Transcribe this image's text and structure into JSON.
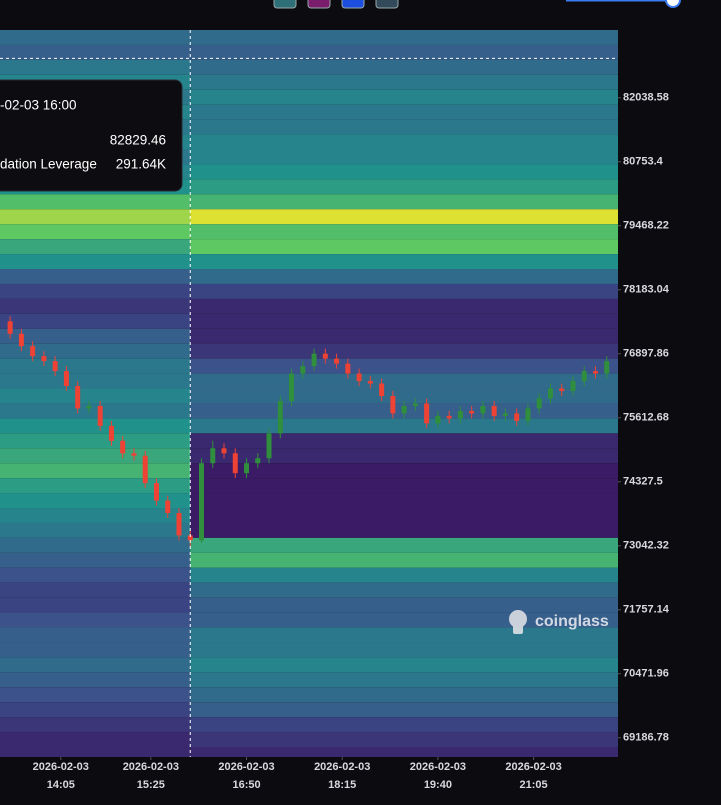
{
  "chart_data": {
    "type": "heatmap-candlestick",
    "ylim": [
      68800,
      83400
    ],
    "yticks": [
      82038.58,
      80753.4,
      79468.22,
      78183.04,
      76897.86,
      75612.68,
      74327.5,
      73042.32,
      71757.14,
      70471.96,
      69186.78
    ],
    "xlim": [
      "2026-02-03 13:11",
      "2026-02-03 22:20"
    ],
    "xticks": [
      {
        "value": "2026-02-03 14:05",
        "date": "2026-02-03",
        "label": "14:05"
      },
      {
        "value": "2026-02-03 15:25",
        "date": "2026-02-03",
        "label": "15:25"
      },
      {
        "value": "2026-02-03 16:50",
        "date": "2026-02-03",
        "label": "16:50"
      },
      {
        "value": "2026-02-03 18:15",
        "date": "2026-02-03",
        "label": "18:15"
      },
      {
        "value": "2026-02-03 19:40",
        "date": "2026-02-03",
        "label": "19:40"
      },
      {
        "value": "2026-02-03 21:05",
        "date": "2026-02-03",
        "label": "21:05"
      }
    ],
    "crosshair": {
      "x": "2026-02-03 16:00",
      "y": 82829.46
    },
    "tooltip": {
      "time": "-02-03 16:00",
      "price": "82829.46",
      "label": "dation Leverage",
      "value": "291.64K"
    },
    "watermark": "coinglass",
    "up_color": "#2f8f3c",
    "down_color": "#ee4235",
    "heatmap": {
      "levels": [
        83100,
        82800,
        82500,
        82200,
        81900,
        81600,
        81300,
        81000,
        80700,
        80400,
        80100,
        79800,
        79500,
        79200,
        78900,
        78600,
        78300,
        78000,
        77700,
        77400,
        77100,
        76800,
        76500,
        76200,
        75900,
        75600,
        75300,
        75000,
        74700,
        74400,
        74100,
        73800,
        73500,
        73200,
        72900,
        72600,
        72300,
        72000,
        71700,
        71400,
        71100,
        70800,
        70500,
        70200,
        69900,
        69600,
        69300,
        69000,
        68700
      ],
      "left": [
        0.35,
        0.3,
        0.4,
        0.45,
        0.4,
        0.45,
        0.4,
        0.45,
        0.4,
        0.45,
        0.5,
        0.7,
        0.85,
        0.75,
        0.6,
        0.5,
        0.3,
        0.2,
        0.15,
        0.2,
        0.3,
        0.35,
        0.4,
        0.4,
        0.45,
        0.4,
        0.5,
        0.55,
        0.6,
        0.65,
        0.55,
        0.5,
        0.45,
        0.4,
        0.35,
        0.3,
        0.25,
        0.2,
        0.2,
        0.25,
        0.3,
        0.3,
        0.35,
        0.3,
        0.25,
        0.2,
        0.15,
        0.1,
        0.1
      ],
      "right": [
        0.35,
        0.3,
        0.35,
        0.4,
        0.45,
        0.4,
        0.4,
        0.45,
        0.45,
        0.5,
        0.55,
        0.65,
        0.95,
        0.7,
        0.75,
        0.5,
        0.35,
        0.2,
        0.1,
        0.1,
        0.1,
        0.15,
        0.25,
        0.35,
        0.35,
        0.3,
        0.4,
        0.1,
        0.1,
        0.05,
        0.05,
        0.05,
        0.05,
        0.05,
        0.6,
        0.65,
        0.45,
        0.35,
        0.3,
        0.3,
        0.4,
        0.4,
        0.45,
        0.4,
        0.35,
        0.3,
        0.2,
        0.15,
        0.1
      ]
    },
    "candles": {
      "x": [
        "2026-02-03 13:20",
        "2026-02-03 13:30",
        "2026-02-03 13:40",
        "2026-02-03 13:50",
        "2026-02-03 14:00",
        "2026-02-03 14:10",
        "2026-02-03 14:20",
        "2026-02-03 14:30",
        "2026-02-03 14:40",
        "2026-02-03 14:50",
        "2026-02-03 15:00",
        "2026-02-03 15:10",
        "2026-02-03 15:20",
        "2026-02-03 15:30",
        "2026-02-03 15:40",
        "2026-02-03 15:50",
        "2026-02-03 16:00",
        "2026-02-03 16:10",
        "2026-02-03 16:20",
        "2026-02-03 16:30",
        "2026-02-03 16:40",
        "2026-02-03 16:50",
        "2026-02-03 17:00",
        "2026-02-03 17:10",
        "2026-02-03 17:20",
        "2026-02-03 17:30",
        "2026-02-03 17:40",
        "2026-02-03 17:50",
        "2026-02-03 18:00",
        "2026-02-03 18:10",
        "2026-02-03 18:20",
        "2026-02-03 18:30",
        "2026-02-03 18:40",
        "2026-02-03 18:50",
        "2026-02-03 19:00",
        "2026-02-03 19:10",
        "2026-02-03 19:20",
        "2026-02-03 19:30",
        "2026-02-03 19:40",
        "2026-02-03 19:50",
        "2026-02-03 20:00",
        "2026-02-03 20:10",
        "2026-02-03 20:20",
        "2026-02-03 20:30",
        "2026-02-03 20:40",
        "2026-02-03 20:50",
        "2026-02-03 21:00",
        "2026-02-03 21:10",
        "2026-02-03 21:20",
        "2026-02-03 21:30",
        "2026-02-03 21:40",
        "2026-02-03 21:50",
        "2026-02-03 22:00",
        "2026-02-03 22:10"
      ],
      "open": [
        77550,
        77300,
        77050,
        76850,
        76750,
        76550,
        76250,
        75800,
        75850,
        75450,
        75150,
        74900,
        74850,
        74300,
        73950,
        73700,
        73250,
        73150,
        74700,
        75000,
        74900,
        74500,
        74700,
        74800,
        75300,
        75950,
        76500,
        76650,
        76900,
        76800,
        76700,
        76500,
        76350,
        76300,
        76050,
        75700,
        75850,
        75900,
        75500,
        75650,
        75600,
        75750,
        75700,
        75850,
        75650,
        75700,
        75550,
        75800,
        76000,
        76200,
        76150,
        76350,
        76550,
        76500
      ],
      "high": [
        77650,
        77400,
        77150,
        76950,
        76850,
        76650,
        76350,
        75950,
        75950,
        75550,
        75250,
        75000,
        74950,
        74400,
        74050,
        73800,
        73350,
        74800,
        75150,
        75100,
        75000,
        74800,
        74900,
        75400,
        76050,
        76600,
        76750,
        77000,
        77000,
        76900,
        76800,
        76600,
        76450,
        76400,
        76150,
        75950,
        76000,
        76000,
        75750,
        75750,
        75850,
        75850,
        75950,
        75950,
        75800,
        75800,
        75900,
        76100,
        76300,
        76300,
        76450,
        76650,
        76650,
        76850
      ],
      "low": [
        77200,
        76950,
        76750,
        76650,
        76450,
        76150,
        75700,
        75700,
        75350,
        75050,
        74800,
        74750,
        74200,
        73850,
        73600,
        73150,
        73020,
        73100,
        74600,
        74800,
        74400,
        74400,
        74600,
        74700,
        75200,
        75850,
        76400,
        76550,
        76700,
        76600,
        76400,
        76250,
        76200,
        75950,
        75600,
        75600,
        75750,
        75400,
        75400,
        75500,
        75500,
        75600,
        75600,
        75550,
        75550,
        75450,
        75450,
        75700,
        75900,
        76050,
        76050,
        76250,
        76400,
        76400
      ],
      "close": [
        77300,
        77050,
        76850,
        76750,
        76550,
        76250,
        75800,
        75850,
        75450,
        75150,
        74900,
        74850,
        74300,
        73950,
        73700,
        73250,
        73150,
        74700,
        75000,
        74900,
        74500,
        74700,
        74800,
        75300,
        75950,
        76500,
        76650,
        76900,
        76800,
        76700,
        76500,
        76350,
        76300,
        76050,
        75700,
        75850,
        75900,
        75500,
        75650,
        75600,
        75750,
        75700,
        75850,
        75650,
        75700,
        75550,
        75800,
        76000,
        76200,
        76150,
        76350,
        76550,
        76500,
        76750
      ]
    }
  }
}
